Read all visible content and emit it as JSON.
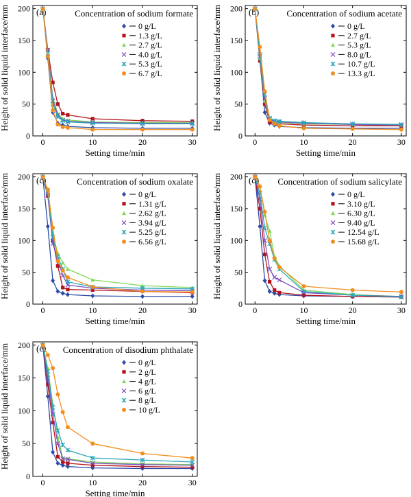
{
  "colors": [
    "#2b4ba8",
    "#b5121b",
    "#7ed957",
    "#7b4fc0",
    "#2aa7b8",
    "#f28e1c"
  ],
  "chart_data": [
    {
      "type": "line",
      "panel_label": "(a)",
      "title": "Concentration of sodium formate",
      "xlabel": "Setting time/min",
      "ylabel": "Height of solid liquid interface/mm",
      "xlim": [
        -2,
        31
      ],
      "ylim": [
        0,
        205
      ],
      "xticks": [
        0,
        10,
        20,
        30
      ],
      "yticks": [
        0,
        50,
        100,
        150,
        200
      ],
      "legend": "top-right",
      "x": [
        0,
        1,
        2,
        3,
        4,
        5,
        10,
        20,
        30
      ],
      "series": [
        {
          "name": "0 g/L",
          "marker": "diamond",
          "values": [
            200,
            122,
            37,
            20,
            17,
            15,
            13,
            12,
            12
          ]
        },
        {
          "name": "1.3 g/L",
          "marker": "square",
          "values": [
            200,
            135,
            84,
            50,
            35,
            33,
            27,
            24,
            23
          ]
        },
        {
          "name": "2.7 g/L",
          "marker": "triangle",
          "values": [
            200,
            135,
            60,
            35,
            27,
            25,
            22,
            21,
            21
          ]
        },
        {
          "name": "4.0 g/L",
          "marker": "x",
          "values": [
            200,
            135,
            55,
            33,
            25,
            23,
            21,
            20,
            20
          ]
        },
        {
          "name": "5.3 g/L",
          "marker": "star",
          "values": [
            200,
            130,
            50,
            30,
            24,
            22,
            20,
            19,
            19
          ]
        },
        {
          "name": "6.7 g/L",
          "marker": "circle",
          "values": [
            200,
            125,
            40,
            18,
            14,
            13,
            10,
            10,
            10
          ]
        }
      ]
    },
    {
      "type": "line",
      "panel_label": "(b)",
      "title": "Concentration of sodium acetate",
      "xlabel": "Setting time/min",
      "ylabel": "Height of solid liquid interface/mm",
      "xlim": [
        -2,
        31
      ],
      "ylim": [
        0,
        205
      ],
      "xticks": [
        0,
        10,
        20,
        30
      ],
      "yticks": [
        0,
        50,
        100,
        150,
        200
      ],
      "legend": "top-right",
      "x": [
        0,
        1,
        2,
        3,
        4,
        5,
        10,
        20,
        30
      ],
      "series": [
        {
          "name": "0 g/L",
          "marker": "diamond",
          "values": [
            200,
            120,
            37,
            20,
            17,
            15,
            13,
            12,
            12
          ]
        },
        {
          "name": "2.7 g/L",
          "marker": "square",
          "values": [
            200,
            118,
            50,
            22,
            20,
            19,
            17,
            16,
            16
          ]
        },
        {
          "name": "5.3 g/L",
          "marker": "triangle",
          "values": [
            200,
            122,
            55,
            25,
            22,
            21,
            19,
            18,
            17
          ]
        },
        {
          "name": "8.0 g/L",
          "marker": "x",
          "values": [
            200,
            125,
            60,
            26,
            23,
            22,
            20,
            18,
            17
          ]
        },
        {
          "name": "10.7 g/L",
          "marker": "star",
          "values": [
            200,
            128,
            65,
            28,
            24,
            23,
            21,
            19,
            18
          ]
        },
        {
          "name": "13.3 g/L",
          "marker": "circle",
          "values": [
            200,
            140,
            70,
            25,
            19,
            16,
            12,
            11,
            10
          ]
        }
      ]
    },
    {
      "type": "line",
      "panel_label": "(c)",
      "title": "Concentration of sodium oxalate",
      "xlabel": "Setting time/min",
      "ylabel": "Height of solid liquid interface/mm",
      "xlim": [
        -2,
        31
      ],
      "ylim": [
        0,
        205
      ],
      "xticks": [
        0,
        10,
        20,
        30
      ],
      "yticks": [
        0,
        50,
        100,
        150,
        200
      ],
      "legend": "top-right",
      "x": [
        0,
        1,
        2,
        3,
        4,
        5,
        10,
        20,
        30
      ],
      "series": [
        {
          "name": "0 g/L",
          "marker": "diamond",
          "values": [
            200,
            122,
            37,
            20,
            17,
            15,
            13,
            12,
            12
          ]
        },
        {
          "name": "1.31 g/L",
          "marker": "square",
          "values": [
            200,
            170,
            100,
            60,
            26,
            23,
            22,
            20,
            18
          ]
        },
        {
          "name": "2.62 g/L",
          "marker": "triangle",
          "values": [
            200,
            175,
            110,
            80,
            65,
            55,
            38,
            29,
            26
          ]
        },
        {
          "name": "3.94 g/L",
          "marker": "x",
          "values": [
            200,
            172,
            95,
            70,
            45,
            30,
            25,
            22,
            21
          ]
        },
        {
          "name": "5.25 g/L",
          "marker": "star",
          "values": [
            200,
            175,
            105,
            75,
            55,
            35,
            27,
            25,
            24
          ]
        },
        {
          "name": "6.56 g/L",
          "marker": "circle",
          "values": [
            200,
            180,
            120,
            68,
            53,
            42,
            27,
            20,
            19
          ]
        }
      ]
    },
    {
      "type": "line",
      "panel_label": "(d)",
      "title": "Concentration of sodium salicylate",
      "xlabel": "Setting time/min",
      "ylabel": "Height of solid liquid interface/mm",
      "xlim": [
        -2,
        31
      ],
      "ylim": [
        0,
        205
      ],
      "xticks": [
        0,
        10,
        20,
        30
      ],
      "yticks": [
        0,
        50,
        100,
        150,
        200
      ],
      "legend": "top-right",
      "x": [
        0,
        1,
        2,
        3,
        4,
        5,
        10,
        20,
        30
      ],
      "series": [
        {
          "name": "0 g/L",
          "marker": "diamond",
          "values": [
            200,
            122,
            37,
            20,
            17,
            15,
            13,
            12,
            12
          ]
        },
        {
          "name": "3.10 g/L",
          "marker": "square",
          "values": [
            200,
            150,
            78,
            35,
            22,
            18,
            14,
            12,
            11
          ]
        },
        {
          "name": "6.30 g/L",
          "marker": "triangle",
          "values": [
            200,
            185,
            140,
            115,
            75,
            60,
            22,
            15,
            12
          ]
        },
        {
          "name": "9.40 g/L",
          "marker": "x",
          "values": [
            200,
            165,
            100,
            55,
            42,
            38,
            18,
            14,
            12
          ]
        },
        {
          "name": "12.54 g/L",
          "marker": "star",
          "values": [
            200,
            175,
            120,
            95,
            70,
            55,
            20,
            14,
            11
          ]
        },
        {
          "name": "15.68 g/L",
          "marker": "circle",
          "values": [
            200,
            185,
            145,
            100,
            72,
            58,
            28,
            22,
            19
          ]
        }
      ]
    },
    {
      "type": "line",
      "panel_label": "(e)",
      "title": "Concentration of disodium phthalate",
      "xlabel": "Setting time/min",
      "ylabel": "Height of solid liquid interface/mm",
      "xlim": [
        -2,
        31
      ],
      "ylim": [
        0,
        205
      ],
      "xticks": [
        0,
        10,
        20,
        30
      ],
      "yticks": [
        0,
        50,
        100,
        150,
        200
      ],
      "legend": "top-right",
      "x": [
        0,
        1,
        2,
        3,
        4,
        5,
        10,
        20,
        30
      ],
      "series": [
        {
          "name": "0 g/L",
          "marker": "diamond",
          "values": [
            200,
            122,
            37,
            20,
            17,
            15,
            13,
            12,
            12
          ]
        },
        {
          "name": "2 g/L",
          "marker": "square",
          "values": [
            200,
            140,
            82,
            30,
            22,
            20,
            17,
            15,
            14
          ]
        },
        {
          "name": "4 g/L",
          "marker": "triangle",
          "values": [
            200,
            165,
            110,
            60,
            28,
            27,
            22,
            19,
            18
          ]
        },
        {
          "name": "6 g/L",
          "marker": "x",
          "values": [
            200,
            150,
            95,
            50,
            27,
            26,
            20,
            18,
            17
          ]
        },
        {
          "name": "8 g/L",
          "marker": "star",
          "values": [
            200,
            160,
            105,
            70,
            48,
            40,
            28,
            25,
            22
          ]
        },
        {
          "name": "10 g/L",
          "marker": "circle",
          "values": [
            200,
            185,
            165,
            125,
            98,
            75,
            50,
            35,
            28
          ]
        }
      ]
    }
  ]
}
